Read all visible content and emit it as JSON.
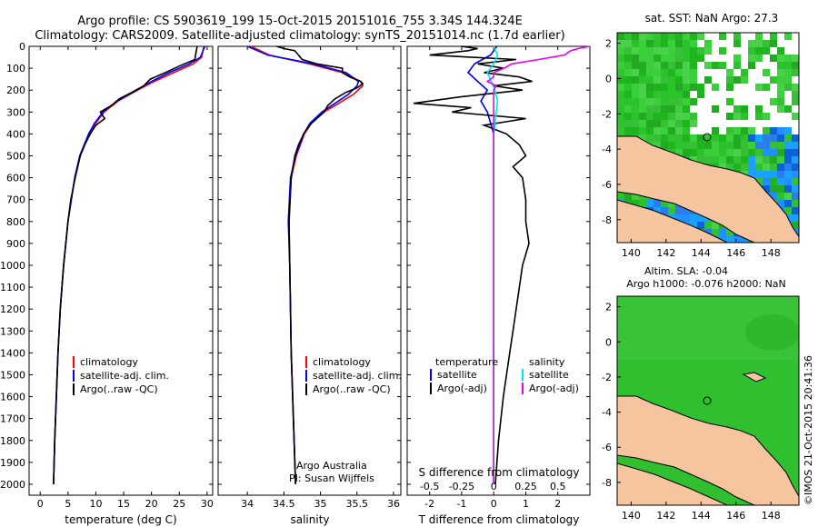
{
  "header": {
    "line1": "Argo profile: CS 5903619_199 15-Oct-2015 20151016_755 3.34S 144.324E",
    "line2": "Climatology: CARS2009. Satellite-adjusted climatology: synTS_20151014.nc (1.7d earlier)"
  },
  "depth_ticks": [
    "0",
    "100",
    "200",
    "300",
    "400",
    "500",
    "600",
    "700",
    "800",
    "900",
    "1000",
    "1100",
    "1200",
    "1300",
    "1400",
    "1500",
    "1600",
    "1700",
    "1800",
    "1900",
    "2000"
  ],
  "colors": {
    "climatology": "#ff0000",
    "satellite": "#0000ff",
    "argo": "#000000",
    "sat_salinity": "#00e5ee",
    "argo_salinity": "#ee00ee",
    "land": "#f5c59f",
    "sea_green": "#22b822"
  },
  "chart_data": [
    {
      "type": "line",
      "id": "temperature",
      "xlabel": "temperature (deg C)",
      "ylabel": "depth",
      "xlim": [
        -2,
        31
      ],
      "ylim": [
        2050,
        0
      ],
      "xticks": [
        "0",
        "5",
        "10",
        "15",
        "20",
        "25",
        "30"
      ],
      "legend": [
        "climatology",
        "satellite-adj. clim.",
        "Argo(..raw -QC)"
      ],
      "series": [
        {
          "name": "climatology",
          "depth": [
            0,
            50,
            80,
            120,
            160,
            200,
            250,
            300,
            350,
            400,
            500,
            600,
            800,
            1000,
            1200,
            1400,
            1600,
            1800,
            2000
          ],
          "values": [
            29.4,
            29.0,
            27.5,
            24.0,
            20.5,
            17.5,
            14.0,
            11.5,
            10.0,
            8.8,
            7.2,
            6.2,
            5.0,
            4.2,
            3.6,
            3.2,
            2.9,
            2.6,
            2.4
          ]
        },
        {
          "name": "satellite-adj. clim.",
          "depth": [
            0,
            50,
            80,
            120,
            160,
            200,
            250,
            300,
            350,
            400,
            500,
            600,
            800,
            1000,
            1200,
            1400,
            1600,
            1800,
            2000
          ],
          "values": [
            29.6,
            28.8,
            26.8,
            23.2,
            20.0,
            17.3,
            13.8,
            11.3,
            9.8,
            8.7,
            7.1,
            6.2,
            5.0,
            4.2,
            3.6,
            3.2,
            2.9,
            2.6,
            2.4
          ]
        },
        {
          "name": "Argo(..raw -QC)",
          "depth": [
            0,
            30,
            60,
            90,
            120,
            150,
            180,
            210,
            240,
            270,
            300,
            330,
            360,
            400,
            450,
            500,
            600,
            700,
            800,
            1000,
            1200,
            1400,
            1600,
            1800,
            2000
          ],
          "values": [
            28.2,
            28.0,
            27.8,
            25.0,
            22.5,
            19.8,
            18.6,
            16.5,
            14.2,
            12.8,
            10.8,
            11.6,
            10.0,
            9.0,
            8.0,
            7.2,
            6.3,
            5.5,
            5.0,
            4.2,
            3.6,
            3.2,
            2.9,
            2.6,
            2.4
          ]
        }
      ]
    },
    {
      "type": "line",
      "id": "salinity",
      "xlabel": "salinity",
      "ylabel": "depth",
      "xlim": [
        33.6,
        36.1
      ],
      "ylim": [
        2050,
        0
      ],
      "xticks": [
        "34",
        "34.5",
        "35",
        "35.5",
        "36"
      ],
      "legend": [
        "climatology",
        "satellite-adj. clim.",
        "Argo(..raw -QC)"
      ],
      "annotation": [
        "Argo Australia",
        "PI: Susan Wijffels"
      ],
      "series": [
        {
          "name": "climatology",
          "depth": [
            0,
            40,
            80,
            120,
            160,
            180,
            220,
            260,
            300,
            350,
            400,
            500,
            600,
            800,
            1000,
            1400,
            2000
          ],
          "values": [
            34.05,
            34.3,
            34.85,
            35.3,
            35.55,
            35.58,
            35.45,
            35.25,
            35.05,
            34.88,
            34.78,
            34.67,
            34.6,
            34.57,
            34.58,
            34.6,
            34.66
          ]
        },
        {
          "name": "satellite-adj. clim.",
          "depth": [
            0,
            40,
            80,
            120,
            160,
            180,
            220,
            260,
            300,
            350,
            400,
            500,
            600,
            800,
            1000,
            1400,
            2000
          ],
          "values": [
            34.0,
            34.28,
            34.9,
            35.35,
            35.52,
            35.5,
            35.38,
            35.2,
            35.02,
            34.86,
            34.77,
            34.66,
            34.59,
            34.56,
            34.58,
            34.6,
            34.66
          ]
        },
        {
          "name": "Argo(..raw -QC)",
          "depth": [
            0,
            10,
            20,
            40,
            60,
            80,
            100,
            120,
            140,
            160,
            170,
            190,
            210,
            240,
            270,
            300,
            330,
            360,
            400,
            450,
            500,
            600,
            800,
            1000,
            1400,
            2000
          ],
          "values": [
            34.4,
            34.5,
            34.65,
            34.7,
            34.75,
            34.95,
            35.3,
            35.3,
            35.4,
            35.55,
            35.58,
            35.5,
            35.35,
            35.2,
            35.1,
            35.05,
            34.95,
            34.85,
            34.77,
            34.7,
            34.65,
            34.6,
            34.57,
            34.58,
            34.6,
            34.66
          ]
        }
      ]
    },
    {
      "type": "line",
      "id": "difference",
      "xlabel": "T difference from climatology",
      "xlabel_top": "S difference from climatology",
      "xlim": [
        -2.7,
        3.0
      ],
      "ylim": [
        2050,
        0
      ],
      "xticks_T": [
        "-2",
        "-1",
        "0",
        "1",
        "2"
      ],
      "xticks_S": [
        "-0.5",
        "-0.25",
        "0",
        "0.25",
        "0.5"
      ],
      "legend_temperature_title": "temperature",
      "legend_salinity_title": "salinity",
      "legend_temperature": [
        "satellite",
        "Argo(-adj)"
      ],
      "legend_salinity": [
        "satellite",
        "Argo(-adj)"
      ],
      "series": [
        {
          "name": "T satellite",
          "depth": [
            0,
            40,
            80,
            120,
            160,
            200,
            250,
            300,
            350,
            400,
            500,
            600,
            800,
            1000,
            1400,
            2000
          ],
          "values": [
            0.1,
            -0.1,
            -0.6,
            -0.8,
            -0.5,
            -0.2,
            -0.4,
            -0.2,
            -0.1,
            0.0,
            0.0,
            0.0,
            0.0,
            0.0,
            0.0,
            0.0
          ]
        },
        {
          "name": "T Argo(-adj)",
          "depth": [
            0,
            10,
            20,
            40,
            60,
            80,
            100,
            120,
            140,
            160,
            180,
            200,
            230,
            260,
            280,
            300,
            330,
            360,
            400,
            450,
            500,
            550,
            600,
            700,
            800,
            900,
            1000,
            1100,
            1200,
            1300,
            1400,
            1500,
            1600,
            1800,
            2000
          ],
          "values": [
            -1.0,
            -0.5,
            -0.8,
            -2.0,
            0.7,
            -0.5,
            0.3,
            -0.3,
            0.8,
            1.2,
            0.0,
            0.9,
            -1.0,
            -2.5,
            -0.7,
            -1.3,
            1.0,
            -0.3,
            0.4,
            0.8,
            1.0,
            0.6,
            0.9,
            1.0,
            1.0,
            1.1,
            0.9,
            0.8,
            0.7,
            0.6,
            0.5,
            0.4,
            0.3,
            0.15,
            0.05
          ]
        },
        {
          "name": "S satellite",
          "depth": [
            0,
            40,
            80,
            120,
            160,
            200,
            250,
            300,
            350,
            400,
            500,
            600,
            800,
            1000,
            1400,
            2000
          ],
          "values": [
            0.0,
            0.03,
            0.0,
            -0.05,
            -0.02,
            0.01,
            0.03,
            0.02,
            0.01,
            0.0,
            0.0,
            0.0,
            0.0,
            0.0,
            0.0,
            0.0
          ]
        },
        {
          "name": "S Argo(-adj)",
          "depth": [
            0,
            10,
            20,
            40,
            60,
            80,
            100,
            120,
            140,
            160,
            180,
            200,
            300,
            400,
            500,
            600,
            800,
            1000,
            1400,
            2000
          ],
          "values": [
            0.75,
            0.66,
            0.6,
            0.55,
            0.35,
            0.14,
            0.08,
            0.0,
            0.0,
            -0.05,
            0.02,
            0.0,
            0.0,
            0.0,
            0.0,
            0.0,
            0.0,
            0.0,
            0.0,
            0.0
          ]
        }
      ]
    }
  ],
  "maps": {
    "sst": {
      "title": "sat. SST: NaN Argo: 27.3",
      "xticks": [
        "140",
        "142",
        "144",
        "146",
        "148"
      ],
      "yticks": [
        "2",
        "0",
        "-2",
        "-4",
        "-6",
        "-8"
      ]
    },
    "altim": {
      "title1": "Altim. SLA: -0.04",
      "title2": "Argo h1000: -0.076 h2000: NaN",
      "xticks": [
        "140",
        "142",
        "144",
        "146",
        "148"
      ],
      "yticks": [
        "2",
        "0",
        "-2",
        "-4",
        "-6",
        "-8"
      ]
    }
  },
  "credit": "©IMOS 21-Oct-2015 20:41:36"
}
